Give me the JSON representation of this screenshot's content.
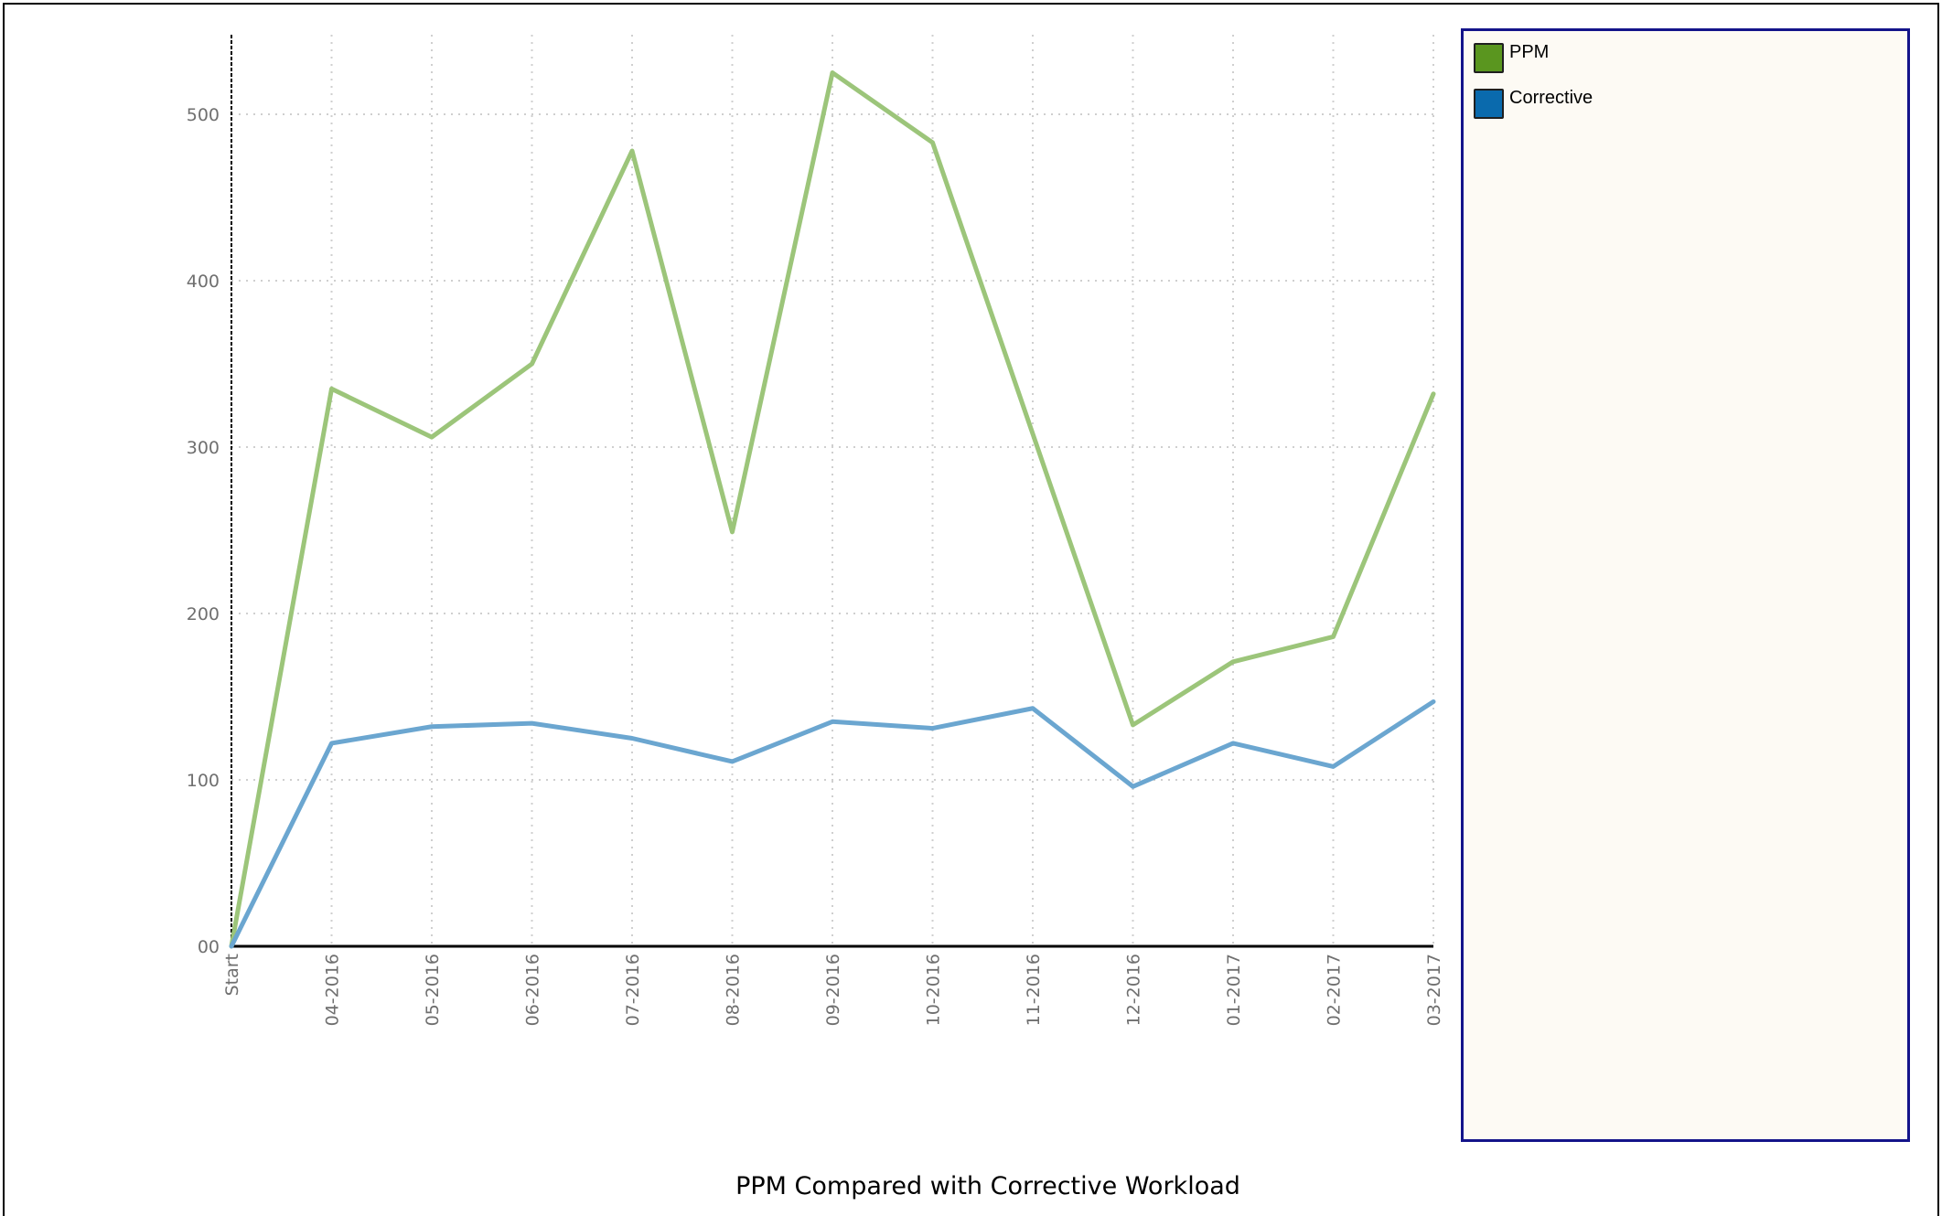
{
  "chart_data": {
    "type": "line",
    "title": "PPM Compared with Corrective Workload",
    "categories": [
      "Start",
      "04-2016",
      "05-2016",
      "06-2016",
      "07-2016",
      "08-2016",
      "09-2016",
      "10-2016",
      "11-2016",
      "12-2016",
      "01-2017",
      "02-2017",
      "03-2017"
    ],
    "yticks": [
      {
        "value": 0,
        "label": "00"
      },
      {
        "value": 100,
        "label": "100"
      },
      {
        "value": 200,
        "label": "200"
      },
      {
        "value": 300,
        "label": "300"
      },
      {
        "value": 400,
        "label": "400"
      },
      {
        "value": 500,
        "label": "500"
      }
    ],
    "ylim": [
      0,
      550
    ],
    "grid": true,
    "legend_position": "right",
    "series": [
      {
        "name": "PPM",
        "color": "#9cc57a",
        "swatch_color": "#5a961f",
        "values": [
          0,
          335,
          306,
          350,
          478,
          249,
          525,
          483,
          308,
          133,
          171,
          186,
          332
        ]
      },
      {
        "name": "Corrective",
        "color": "#6ba6d0",
        "swatch_color": "#0a6aad",
        "values": [
          0,
          122,
          132,
          134,
          125,
          111,
          135,
          131,
          143,
          96,
          122,
          108,
          147
        ]
      }
    ]
  }
}
